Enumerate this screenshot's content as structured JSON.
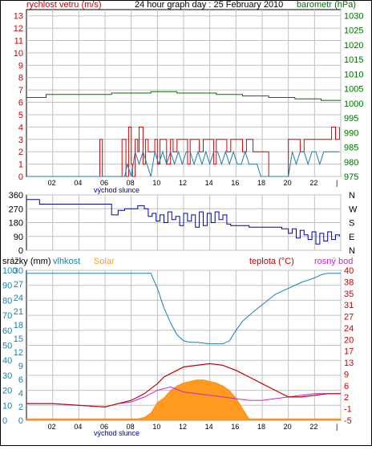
{
  "colors": {
    "wind": "#e00000",
    "wind_avg": "#1a7fb0",
    "pressure": "#007000",
    "wind_dir": "#0000b0",
    "humidity": "#1a7fb0",
    "solar": "#ff9a1f",
    "temperature": "#c00000",
    "dew_point": "#cc22cc",
    "rain_axis": "#1a7fb0",
    "grid": "#c0c0c0",
    "frame": "#000000"
  },
  "chart_data": [
    {
      "type": "line",
      "title": "24 hour graph day : 25 February 2010",
      "left_label": "rychlost vetru (m/s)",
      "right_label": "barometr (hPa)",
      "bottom_label": "východ slunce",
      "x_ticks": [
        "02",
        "04",
        "06",
        "08",
        "10",
        "12",
        "14",
        "16",
        "18",
        "20",
        "22",
        "|"
      ],
      "left_ticks": [
        0,
        1,
        2,
        3,
        4,
        5,
        6,
        7,
        8,
        9,
        10,
        11,
        12,
        13
      ],
      "right_ticks": [
        975,
        980,
        985,
        990,
        995,
        1000,
        1005,
        1010,
        1015,
        1020,
        1025,
        1030
      ],
      "wind_speed_gust": {
        "hours": [
          0,
          5.5,
          5.6,
          5.8,
          6.4,
          6.6,
          7.1,
          7.3,
          7.6,
          7.8,
          8.0,
          8.1,
          8.3,
          8.5,
          8.6,
          8.9,
          9.1,
          9.3,
          9.5,
          9.8,
          10.0,
          10.2,
          10.5,
          10.7,
          11.0,
          11.2,
          11.5,
          11.8,
          12.0,
          12.3,
          12.5,
          12.8,
          13.0,
          13.2,
          13.5,
          13.8,
          14.0,
          14.3,
          14.5,
          14.8,
          15.0,
          15.3,
          15.6,
          15.9,
          16.2,
          16.5,
          16.8,
          17.0,
          17.3,
          17.6,
          17.9,
          18.2,
          18.5,
          18.8,
          19.1,
          19.4,
          19.7,
          20.0,
          20.3,
          20.6,
          20.9,
          21.2,
          21.5,
          21.8,
          22.1,
          22.4,
          22.7,
          23.0,
          23.3,
          23.6,
          23.9
        ],
        "values": [
          0,
          0,
          3,
          0,
          0,
          0,
          0,
          3,
          0,
          4,
          1,
          0,
          3,
          2,
          4,
          1,
          3,
          2,
          2,
          3,
          1,
          3,
          3,
          1,
          3,
          2,
          3,
          3,
          3,
          1,
          3,
          3,
          3,
          2,
          3,
          3,
          3,
          1,
          3,
          3,
          3,
          2,
          3,
          3,
          3,
          2,
          3,
          3,
          2,
          2,
          2,
          2,
          0,
          0,
          0,
          0,
          0,
          3,
          3,
          3,
          2,
          3,
          3,
          3,
          3,
          3,
          3,
          3,
          4,
          3,
          4
        ]
      },
      "wind_speed_avg": {
        "hours": [
          0,
          7.5,
          7.7,
          8.0,
          8.3,
          8.6,
          8.9,
          9.2,
          9.5,
          9.8,
          10.1,
          10.4,
          10.7,
          11.0,
          11.3,
          11.6,
          11.9,
          12.2,
          12.5,
          12.8,
          13.1,
          13.4,
          13.7,
          14.0,
          14.3,
          14.6,
          14.9,
          15.2,
          15.5,
          15.8,
          16.1,
          16.4,
          16.7,
          17.0,
          17.3,
          17.6,
          17.9,
          18.2,
          20.0,
          20.3,
          20.6,
          20.9,
          21.2,
          21.5,
          21.8,
          22.1,
          22.4,
          22.7,
          23.0,
          23.3,
          23.6,
          23.9
        ],
        "values": [
          0,
          0,
          1,
          0,
          2,
          1,
          2,
          1,
          0,
          2,
          1,
          2,
          1,
          2,
          1,
          2,
          1,
          2,
          2,
          1,
          2,
          1,
          2,
          1,
          2,
          2,
          1,
          2,
          1,
          2,
          1,
          1,
          2,
          1,
          1,
          1,
          0,
          0,
          0,
          2,
          1,
          2,
          2,
          1,
          2,
          2,
          1,
          2,
          2,
          2,
          2,
          2
        ]
      },
      "pressure": {
        "hours": [
          0,
          1,
          1.5,
          6,
          6.5,
          9,
          9.5,
          11,
          11.5,
          14,
          14.5,
          16,
          16.5,
          18,
          18.5,
          20,
          20.5,
          22,
          22.5,
          24
        ],
        "values": [
          1002,
          1002,
          1003,
          1003,
          1003.5,
          1003.5,
          1004,
          1004,
          1003.5,
          1003.5,
          1003,
          1003,
          1002.5,
          1002.5,
          1002,
          1002,
          1001.5,
          1001.5,
          1001,
          1001
        ]
      }
    },
    {
      "type": "line",
      "left_ticks": [
        0,
        90,
        180,
        270,
        360
      ],
      "right_ticks": [
        "N",
        "W",
        "S",
        "E",
        "N"
      ],
      "wind_direction": {
        "hours": [
          0,
          1,
          2,
          3,
          4,
          5,
          6,
          6.5,
          7,
          7.5,
          8,
          8.5,
          9,
          9.3,
          9.6,
          9.9,
          10.2,
          10.5,
          10.8,
          11.1,
          11.4,
          11.7,
          12.0,
          12.3,
          12.6,
          12.9,
          13.2,
          13.5,
          13.8,
          14.1,
          14.4,
          14.7,
          15.0,
          15.3,
          15.6,
          16.0,
          17.0,
          18.0,
          19.0,
          19.5,
          20.0,
          20.3,
          20.6,
          20.9,
          21.2,
          21.5,
          21.8,
          22.1,
          22.4,
          22.7,
          23.0,
          23.3,
          23.6,
          23.9
        ],
        "values": [
          330,
          300,
          300,
          300,
          300,
          300,
          300,
          230,
          260,
          270,
          270,
          290,
          270,
          220,
          240,
          190,
          230,
          180,
          250,
          200,
          220,
          160,
          240,
          190,
          230,
          150,
          250,
          160,
          240,
          180,
          250,
          200,
          230,
          170,
          160,
          160,
          150,
          150,
          150,
          140,
          110,
          140,
          80,
          130,
          100,
          70,
          120,
          40,
          110,
          60,
          120,
          70,
          100,
          90
        ]
      }
    },
    {
      "type": "line",
      "left_label_rain": "srážky (mm)",
      "left_label_humidity": "vlhkost",
      "label_solar": "Solar",
      "right_label_temp": "teplota (°C)",
      "right_label_dew": "rosný bod",
      "bottom_label": "východ slunce",
      "x_ticks": [
        "02",
        "04",
        "06",
        "08",
        "10",
        "12",
        "14",
        "16",
        "18",
        "20",
        "22",
        "|"
      ],
      "humidity_ticks": [
        0,
        10,
        20,
        30,
        40,
        50,
        60,
        70,
        80,
        90,
        100
      ],
      "rain_ticks": [
        0,
        2,
        4,
        6,
        9,
        12,
        15,
        18,
        21,
        24,
        27,
        30
      ],
      "temp_ticks": [
        -5,
        -1,
        2,
        6,
        9,
        13,
        17,
        20,
        24,
        27,
        31,
        35,
        38,
        40
      ],
      "humidity": {
        "hours": [
          0,
          9.5,
          10.0,
          10.5,
          11.0,
          11.5,
          12.0,
          12.5,
          13.0,
          14.0,
          15.0,
          15.5,
          16.0,
          16.5,
          17.0,
          18.0,
          19.0,
          20.0,
          21.0,
          22.0,
          22.5,
          23.0,
          24.0
        ],
        "values": [
          98,
          98,
          88,
          75,
          65,
          57,
          53,
          52,
          52,
          51,
          51,
          53,
          60,
          66,
          70,
          77,
          84,
          88,
          92,
          95,
          97,
          98,
          98
        ]
      },
      "solar": {
        "hours": [
          0,
          7.5,
          8.5,
          9.0,
          9.5,
          10.0,
          10.5,
          11.0,
          11.5,
          12.0,
          12.5,
          13.0,
          13.5,
          14.0,
          14.5,
          15.0,
          15.5,
          16.0,
          16.5,
          17.0,
          24.0
        ],
        "values": [
          1,
          1,
          1,
          2,
          5,
          12,
          15,
          20,
          23,
          25,
          26,
          27,
          27,
          26,
          25,
          23,
          20,
          15,
          8,
          1,
          1
        ]
      },
      "temperature": {
        "hours": [
          0,
          2,
          4,
          6,
          7,
          8,
          9,
          10,
          10.5,
          11,
          11.5,
          12,
          13,
          14,
          15,
          16,
          16.5,
          17,
          18,
          19,
          20,
          21,
          22,
          23,
          24
        ],
        "values": [
          0,
          0,
          -0.5,
          -1,
          0,
          1,
          3,
          6,
          8,
          9,
          10,
          11,
          11.5,
          12,
          11.5,
          10,
          9,
          8,
          6,
          4,
          2,
          2,
          2.5,
          3,
          3
        ]
      },
      "dew_point": {
        "hours": [
          0,
          2,
          4,
          6,
          7,
          8,
          9,
          10,
          11,
          12,
          13,
          14,
          15,
          16,
          17,
          18,
          19,
          20,
          21,
          22,
          23,
          24
        ],
        "values": [
          0,
          0,
          -0.5,
          -1,
          0,
          0.5,
          2,
          4,
          5,
          3.5,
          3,
          2.5,
          2,
          1.5,
          1,
          1,
          1.5,
          2,
          2.5,
          3,
          3,
          3
        ]
      }
    }
  ]
}
